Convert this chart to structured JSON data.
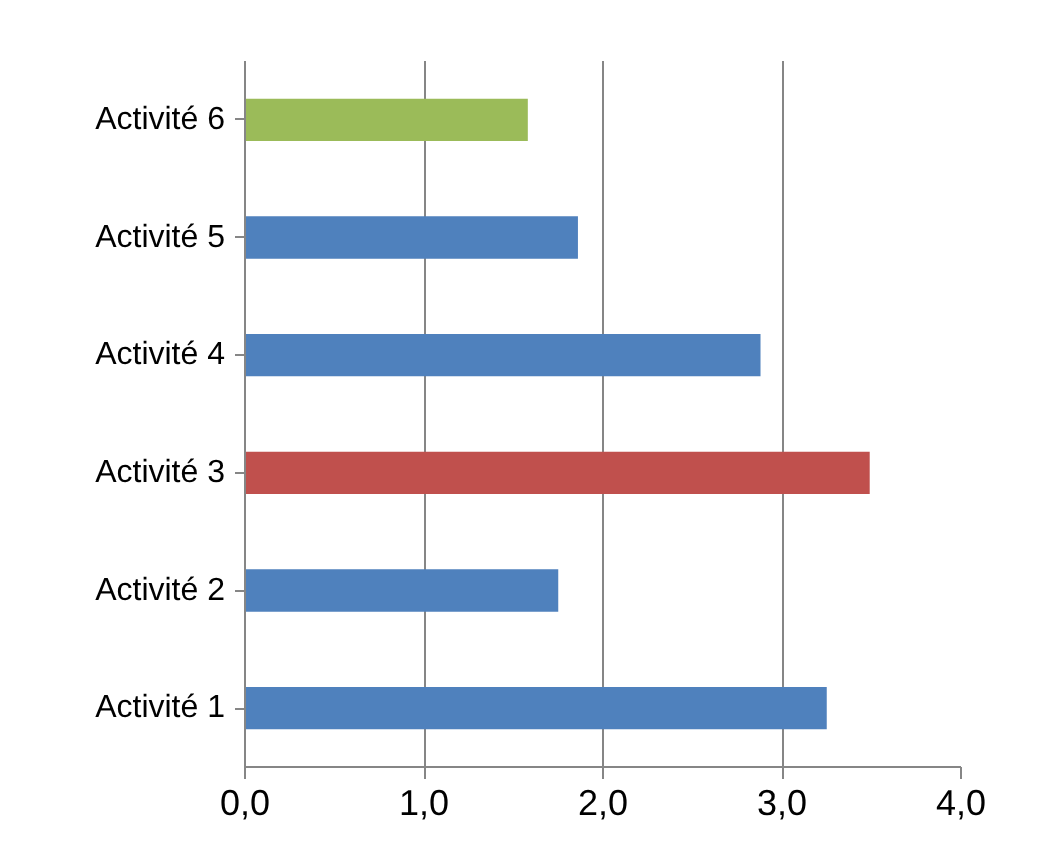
{
  "chart_data": {
    "type": "bar",
    "orientation": "horizontal",
    "categories": [
      "Activité 6",
      "Activité 5",
      "Activité 4",
      "Activité 3",
      "Activité 2",
      "Activité 1"
    ],
    "values": [
      1.58,
      1.86,
      2.88,
      3.49,
      1.75,
      3.25
    ],
    "colors": [
      "#9bbb59",
      "#4f81bd",
      "#4f81bd",
      "#c0504d",
      "#4f81bd",
      "#4f81bd"
    ],
    "xlim": [
      0,
      4
    ],
    "xticks": [
      {
        "value": 0,
        "label": "0,0"
      },
      {
        "value": 1,
        "label": "1,0"
      },
      {
        "value": 2,
        "label": "2,0"
      },
      {
        "value": 3,
        "label": "3,0"
      },
      {
        "value": 4,
        "label": "4,0"
      }
    ],
    "grid": "x"
  }
}
